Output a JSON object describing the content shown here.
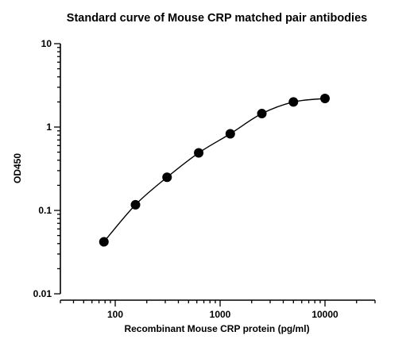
{
  "chart_data": {
    "type": "scatter",
    "title": "Standard curve of Mouse CRP matched pair antibodies",
    "xlabel": "Recombinant Mouse CRP protein (pg/ml)",
    "ylabel": "OD450",
    "x_scale": "log",
    "y_scale": "log",
    "xlim": [
      30,
      30000
    ],
    "ylim": [
      0.01,
      10
    ],
    "x_ticks": [
      100,
      1000,
      10000
    ],
    "x_tick_labels": [
      "100",
      "1000",
      "10000"
    ],
    "y_ticks": [
      0.01,
      0.1,
      1,
      10
    ],
    "y_tick_labels": [
      "0.01",
      "0.1",
      "1",
      "10"
    ],
    "grid": false,
    "legend": "none",
    "fit_curve": true,
    "series": [
      {
        "x": [
          78,
          156,
          312,
          625,
          1250,
          2500,
          5000,
          10000
        ],
        "y": [
          0.042,
          0.117,
          0.25,
          0.49,
          0.83,
          1.45,
          2.0,
          2.2
        ]
      }
    ],
    "colors": {
      "points": "#000000",
      "curve": "#000000",
      "axes": "#000000"
    }
  }
}
